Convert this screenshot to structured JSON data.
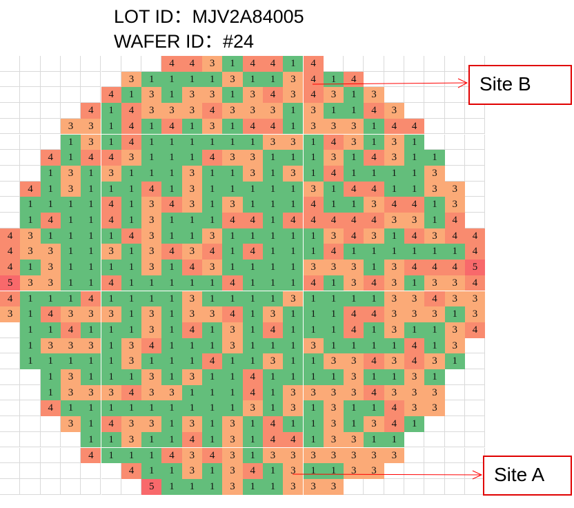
{
  "header": {
    "lot_id": "LOT ID：MJV2A84005",
    "wafer_id": "WAFER ID：#24"
  },
  "annotations": {
    "site_b": "Site B",
    "site_a": "Site A",
    "arrow_color": "#ff0000"
  },
  "chart_data": {
    "type": "heatmap",
    "title": "",
    "grid_columns": 24,
    "grid_rows": 28,
    "color_scale": {
      "1": "#63be7b",
      "3": "#fbaa77",
      "4": "#f98b6f",
      "5": "#f8696b"
    },
    "rows": [
      {
        "start": 8,
        "values": [
          4,
          4,
          3,
          1,
          4,
          4,
          1,
          4
        ]
      },
      {
        "start": 6,
        "values": [
          3,
          1,
          1,
          1,
          1,
          3,
          1,
          1,
          3,
          4,
          1,
          4
        ]
      },
      {
        "start": 5,
        "values": [
          4,
          1,
          3,
          1,
          3,
          3,
          1,
          3,
          4,
          3,
          4,
          3,
          1,
          3
        ]
      },
      {
        "start": 4,
        "values": [
          4,
          1,
          4,
          3,
          3,
          3,
          4,
          3,
          3,
          3,
          1,
          3,
          1,
          1,
          4,
          3
        ]
      },
      {
        "start": 3,
        "values": [
          3,
          3,
          1,
          4,
          1,
          4,
          1,
          3,
          1,
          4,
          4,
          1,
          3,
          3,
          3,
          1,
          4,
          4
        ]
      },
      {
        "start": 3,
        "values": [
          1,
          3,
          1,
          4,
          1,
          1,
          1,
          1,
          1,
          1,
          3,
          3,
          1,
          4,
          3,
          1,
          3,
          1
        ]
      },
      {
        "start": 2,
        "values": [
          4,
          1,
          4,
          4,
          3,
          1,
          1,
          1,
          4,
          3,
          3,
          1,
          1,
          1,
          3,
          1,
          4,
          3,
          1,
          1
        ]
      },
      {
        "start": 2,
        "values": [
          1,
          3,
          1,
          3,
          1,
          1,
          1,
          3,
          1,
          1,
          3,
          1,
          3,
          1,
          4,
          1,
          1,
          1,
          1,
          3
        ]
      },
      {
        "start": 1,
        "values": [
          4,
          1,
          3,
          1,
          1,
          1,
          4,
          1,
          3,
          1,
          1,
          1,
          1,
          1,
          3,
          1,
          4,
          4,
          1,
          1,
          3,
          3
        ]
      },
      {
        "start": 1,
        "values": [
          1,
          1,
          1,
          1,
          4,
          1,
          3,
          4,
          3,
          1,
          3,
          1,
          1,
          1,
          4,
          1,
          1,
          3,
          4,
          4,
          1,
          3
        ]
      },
      {
        "start": 1,
        "values": [
          1,
          4,
          1,
          1,
          4,
          1,
          3,
          1,
          1,
          1,
          4,
          4,
          1,
          4,
          4,
          4,
          4,
          4,
          3,
          3,
          1,
          4
        ]
      },
      {
        "start": 0,
        "values": [
          4,
          3,
          1,
          1,
          1,
          1,
          4,
          3,
          1,
          1,
          3,
          1,
          1,
          1,
          1,
          1,
          3,
          4,
          3,
          1,
          4,
          3,
          4,
          4
        ]
      },
      {
        "start": 0,
        "values": [
          4,
          3,
          3,
          1,
          1,
          3,
          1,
          3,
          4,
          3,
          4,
          1,
          4,
          1,
          1,
          1,
          4,
          1,
          1,
          1,
          1,
          1,
          1,
          4
        ]
      },
      {
        "start": 0,
        "values": [
          4,
          1,
          3,
          1,
          1,
          1,
          1,
          3,
          1,
          4,
          3,
          1,
          1,
          1,
          1,
          3,
          3,
          3,
          1,
          3,
          4,
          4,
          4,
          5
        ]
      },
      {
        "start": 0,
        "values": [
          5,
          3,
          3,
          1,
          1,
          4,
          1,
          1,
          1,
          1,
          1,
          4,
          1,
          1,
          1,
          4,
          1,
          3,
          4,
          3,
          1,
          3,
          3,
          4
        ]
      },
      {
        "start": 0,
        "values": [
          4,
          1,
          1,
          1,
          4,
          1,
          1,
          1,
          1,
          3,
          1,
          1,
          1,
          1,
          3,
          1,
          1,
          1,
          1,
          3,
          3,
          4,
          3,
          3
        ]
      },
      {
        "start": 0,
        "values": [
          3,
          1,
          4,
          3,
          3,
          3,
          1,
          3,
          1,
          3,
          3,
          4,
          1,
          3,
          1,
          1,
          1,
          4,
          4,
          3,
          3,
          3,
          1,
          3
        ]
      },
      {
        "start": 1,
        "values": [
          1,
          1,
          4,
          1,
          1,
          1,
          3,
          1,
          4,
          1,
          3,
          1,
          4,
          1,
          1,
          1,
          4,
          1,
          3,
          1,
          1,
          3,
          4
        ]
      },
      {
        "start": 1,
        "values": [
          1,
          3,
          3,
          3,
          1,
          3,
          4,
          1,
          1,
          1,
          3,
          1,
          1,
          1,
          3,
          1,
          1,
          1,
          1,
          4,
          1,
          3
        ]
      },
      {
        "start": 1,
        "values": [
          1,
          1,
          1,
          1,
          1,
          3,
          1,
          1,
          1,
          4,
          1,
          1,
          3,
          1,
          1,
          3,
          3,
          4,
          3,
          4,
          3,
          1
        ]
      },
      {
        "start": 2,
        "values": [
          1,
          3,
          1,
          1,
          1,
          3,
          1,
          3,
          1,
          1,
          4,
          1,
          1,
          1,
          1,
          3,
          1,
          1,
          3,
          1
        ]
      },
      {
        "start": 2,
        "values": [
          1,
          3,
          3,
          3,
          4,
          3,
          3,
          1,
          1,
          1,
          4,
          1,
          3,
          3,
          3,
          3,
          4,
          3,
          3,
          3
        ]
      },
      {
        "start": 2,
        "values": [
          4,
          1,
          1,
          1,
          1,
          1,
          1,
          1,
          1,
          1,
          3,
          1,
          3,
          1,
          3,
          1,
          1,
          4,
          3,
          3
        ]
      },
      {
        "start": 3,
        "values": [
          3,
          1,
          4,
          3,
          3,
          1,
          3,
          1,
          3,
          1,
          4,
          1,
          1,
          3,
          1,
          3,
          4,
          1
        ]
      },
      {
        "start": 4,
        "values": [
          1,
          1,
          3,
          1,
          1,
          4,
          1,
          3,
          1,
          4,
          4,
          1,
          3,
          3,
          1,
          1
        ]
      },
      {
        "start": 4,
        "values": [
          4,
          1,
          1,
          1,
          4,
          3,
          4,
          3,
          1,
          3,
          3,
          3,
          3,
          3,
          3,
          3
        ]
      },
      {
        "start": 6,
        "values": [
          4,
          1,
          1,
          3,
          1,
          3,
          4,
          1,
          3,
          1,
          1,
          3,
          3
        ]
      },
      {
        "start": 7,
        "values": [
          5,
          1,
          1,
          1,
          3,
          1,
          1,
          3,
          3,
          3
        ]
      }
    ]
  }
}
